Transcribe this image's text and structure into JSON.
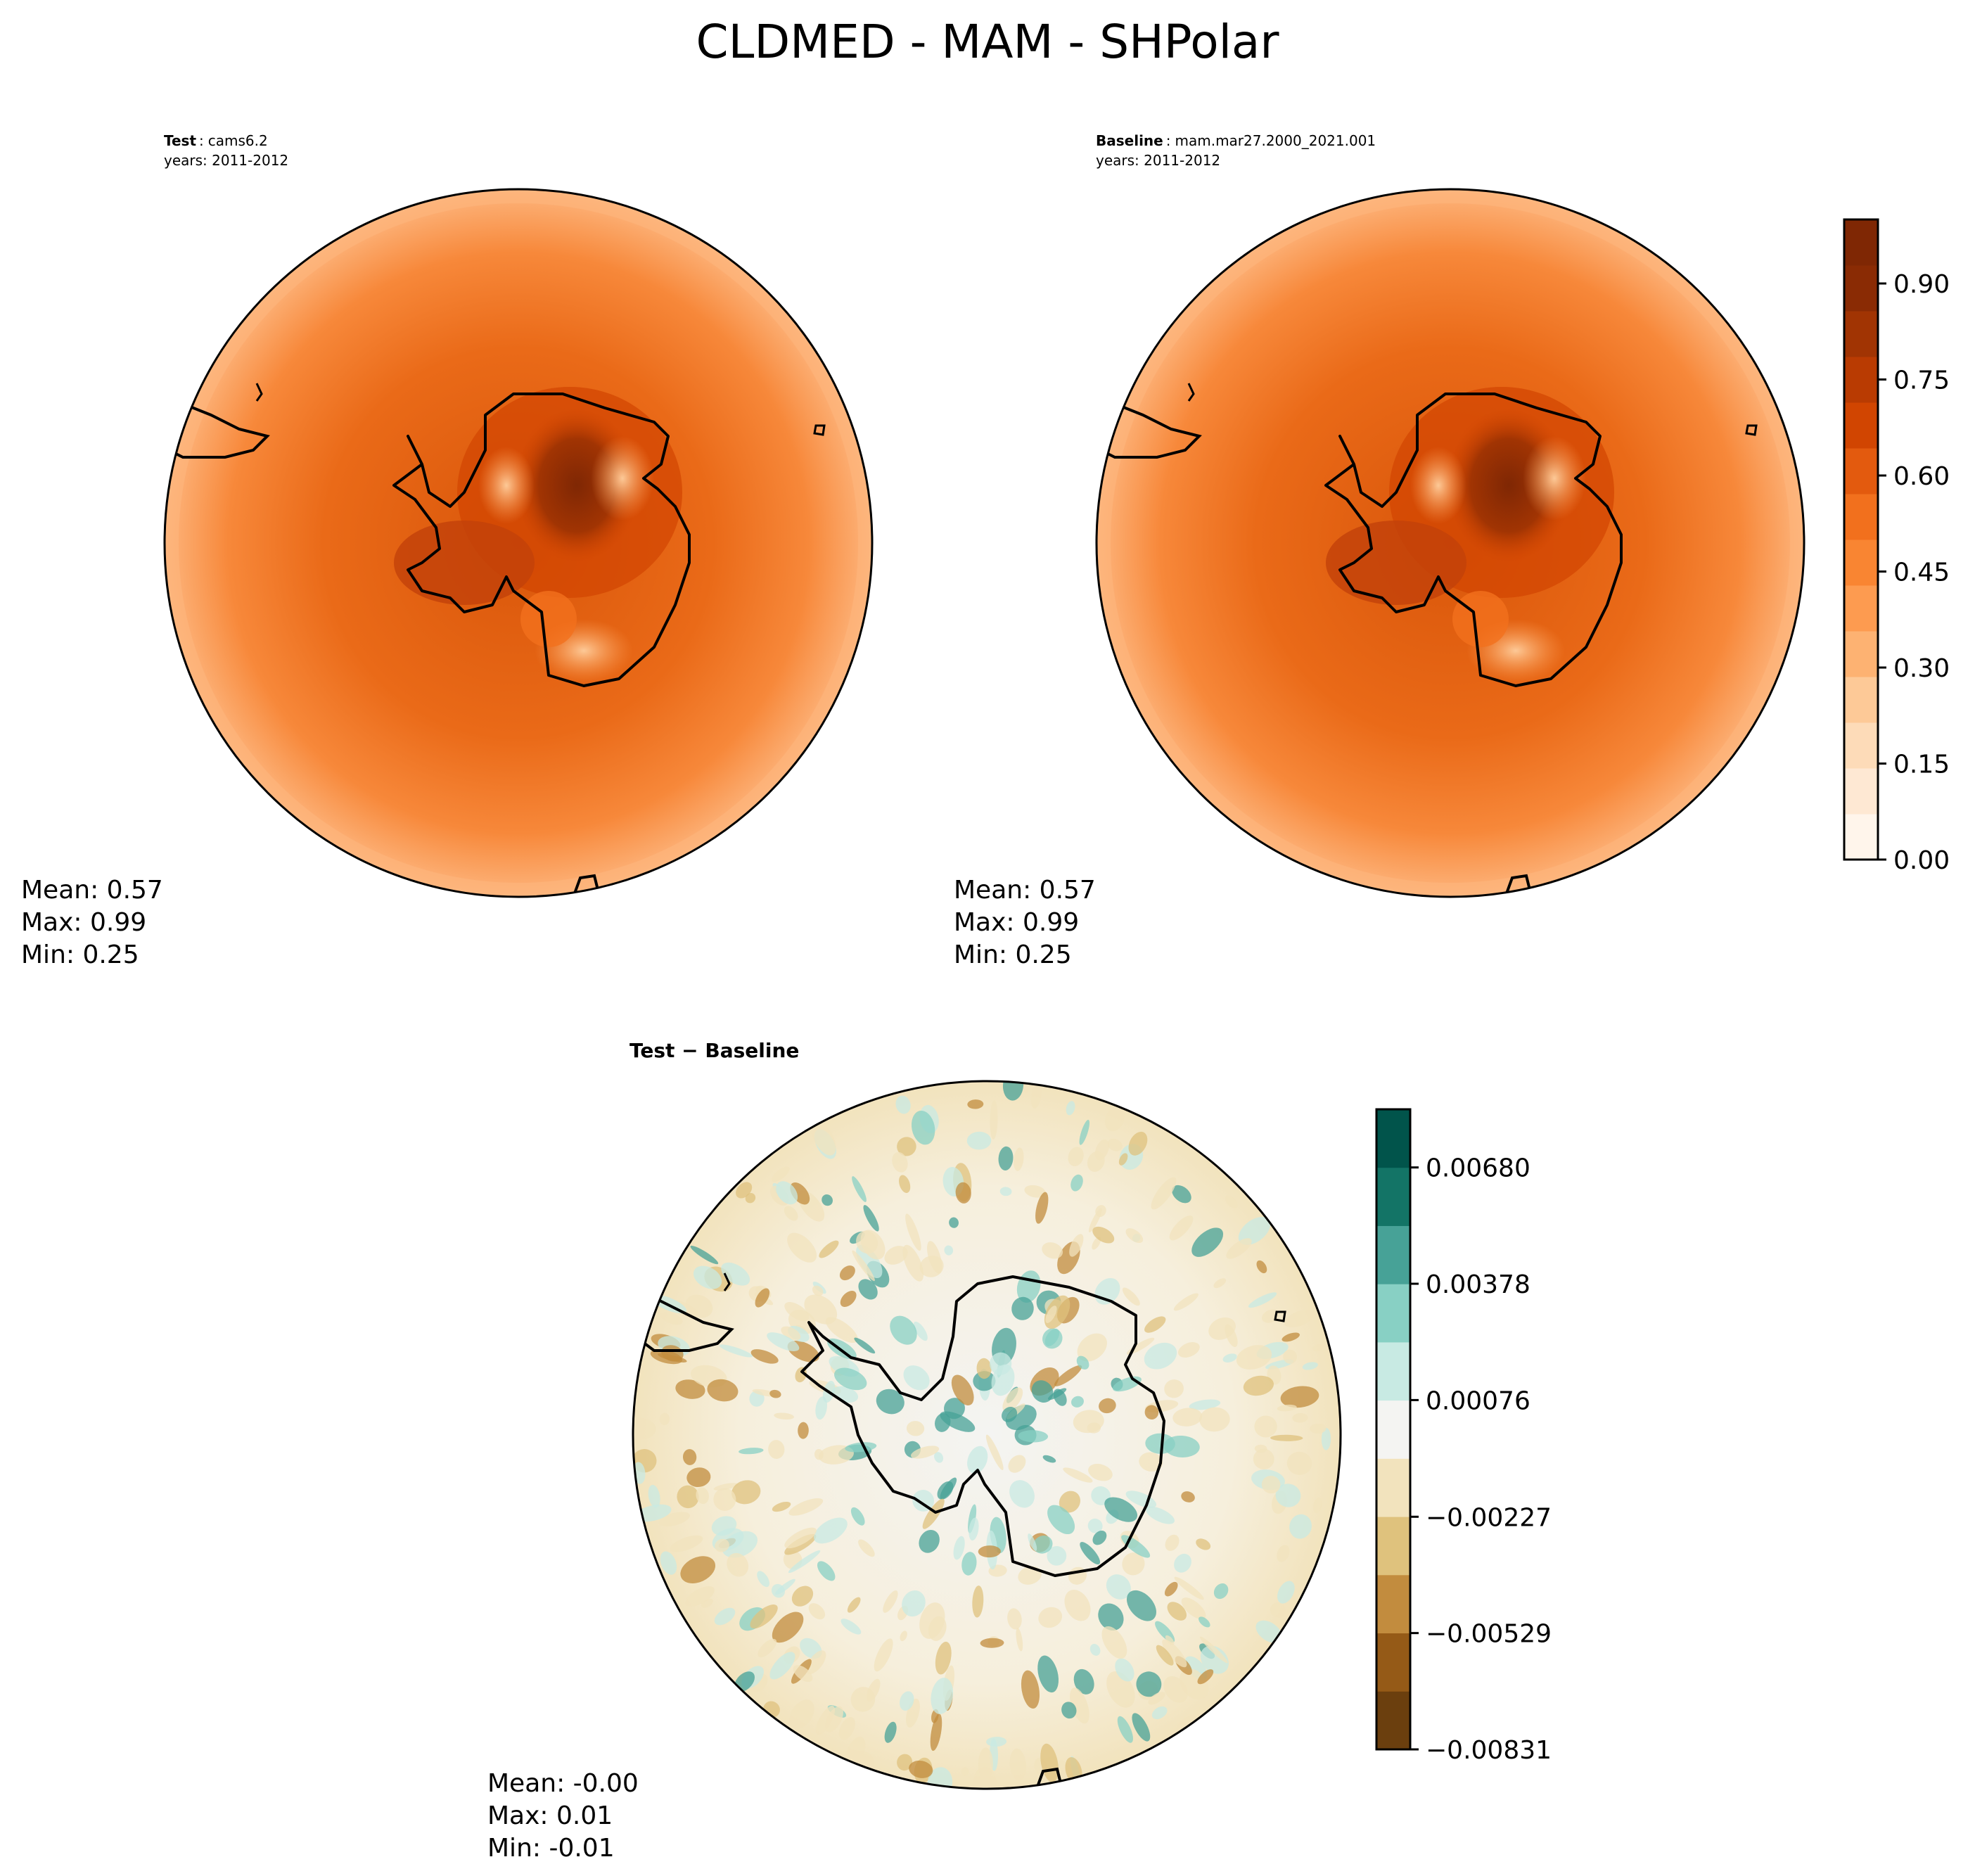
{
  "title": "CLDMED - MAM - SHPolar",
  "panels": {
    "test": {
      "label_bold": "Test",
      "label_value": "cams6.2",
      "years": "years: 2011-2012",
      "stats": {
        "mean": "Mean:  0.57",
        "max": "Max:  0.99",
        "min": "Min:  0.25"
      }
    },
    "baseline": {
      "label_bold": "Baseline",
      "label_value": "mam.mar27.2000_2021.001",
      "years": "years: 2011-2012",
      "stats": {
        "mean": "Mean:  0.57",
        "max": "Max:  0.99",
        "min": "Min:  0.25"
      }
    },
    "diff": {
      "label": "Test − Baseline",
      "stats": {
        "mean": "Mean: -0.00",
        "max": "Max:  0.01",
        "min": "Min: -0.01"
      }
    }
  },
  "colorbars": {
    "main": {
      "ticks": [
        "0.00",
        "0.15",
        "0.30",
        "0.45",
        "0.60",
        "0.75",
        "0.90"
      ],
      "colors": [
        "#fff5eb",
        "#fee8d3",
        "#fddbb8",
        "#fdc997",
        "#fdb272",
        "#fd9b50",
        "#f98532",
        "#f2701d",
        "#e35a0e",
        "#d14501",
        "#b93b02",
        "#a13403",
        "#8a2b04",
        "#7f2704"
      ]
    },
    "diff": {
      "ticks": [
        "−0.00831",
        "−0.00529",
        "−0.00227",
        "0.00076",
        "0.00378",
        "0.00680"
      ],
      "colors": [
        "#6b3f0e",
        "#955a17",
        "#c28c3e",
        "#dfc27d",
        "#f2e3bd",
        "#f4f4f2",
        "#c8eae3",
        "#88d0c4",
        "#47a297",
        "#137466",
        "#01544b"
      ]
    }
  },
  "chart_data": [
    {
      "type": "heatmap",
      "title": "CLDMED - MAM - SHPolar",
      "panel": "Test",
      "case": "cams6.2",
      "years": "2011-2012",
      "projection": "south polar stereographic",
      "stats": {
        "mean": 0.57,
        "max": 0.99,
        "min": 0.25
      },
      "colorbar": {
        "min": 0.0,
        "max": 1.0,
        "ticks": [
          0.0,
          0.15,
          0.3,
          0.45,
          0.6,
          0.75,
          0.9
        ],
        "colormap": "Oranges"
      }
    },
    {
      "type": "heatmap",
      "panel": "Baseline",
      "case": "mam.mar27.2000_2021.001",
      "years": "2011-2012",
      "projection": "south polar stereographic",
      "stats": {
        "mean": 0.57,
        "max": 0.99,
        "min": 0.25
      },
      "colorbar": {
        "min": 0.0,
        "max": 1.0,
        "ticks": [
          0.0,
          0.15,
          0.3,
          0.45,
          0.6,
          0.75,
          0.9
        ],
        "colormap": "Oranges"
      }
    },
    {
      "type": "heatmap",
      "panel": "Test - Baseline",
      "projection": "south polar stereographic",
      "stats": {
        "mean": -0.0,
        "max": 0.01,
        "min": -0.01
      },
      "colorbar": {
        "min": -0.00831,
        "max": 0.00831,
        "ticks": [
          -0.00831,
          -0.00529,
          -0.00227,
          0.00076,
          0.00378,
          0.0068
        ],
        "colormap": "BrBG"
      }
    }
  ]
}
